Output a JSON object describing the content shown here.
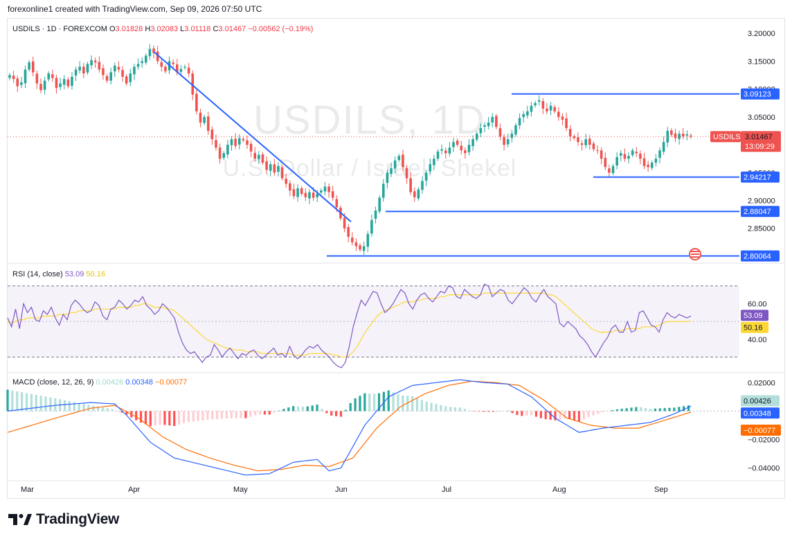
{
  "header": {
    "caption": "forexonline1 created with TradingView.com, Sep 09, 2026 07:50 UTC"
  },
  "brand": {
    "name": "TradingView"
  },
  "watermark": {
    "symbol": "USDILS, 1D",
    "description": "U.S. Dollar / Israeli Shekel"
  },
  "colors": {
    "up": "#26a69a",
    "down": "#ef5350",
    "line": "#2962ff",
    "rsi": "#7e57c2",
    "rsi_ma": "#fdd835",
    "macd": "#2962ff",
    "signal": "#ff6d00"
  },
  "chart_data": [
    {
      "type": "candlestick",
      "legend": {
        "symbol": "USDILS · 1D · FOREXCOM",
        "o_label": "O",
        "o": "3.01828",
        "h_label": "H",
        "h": "3.02083",
        "l_label": "L",
        "l": "3.01118",
        "c_label": "C",
        "c": "3.01467",
        "chg": "−0.00562 (−0.19%)"
      },
      "price_axis": {
        "ticks": [
          "3.20000",
          "3.15000",
          "3.10000",
          "3.05000",
          "3.00000",
          "2.95000",
          "2.90000",
          "2.85000"
        ],
        "range": [
          2.79,
          3.225
        ]
      },
      "time_axis": {
        "labels": [
          "Mar",
          "Apr",
          "May",
          "Jun",
          "Jul",
          "Aug",
          "Sep"
        ]
      },
      "last_price": {
        "symbol_tag": "USDILS",
        "value": "3.01467",
        "countdown": "13:09:29"
      },
      "levels": [
        {
          "value": 3.09123,
          "label": "3.09123"
        },
        {
          "value": 2.94217,
          "label": "2.94217"
        },
        {
          "value": 2.88047,
          "label": "2.88047"
        },
        {
          "value": 2.80064,
          "label": "2.80064"
        }
      ],
      "trendline": {
        "from": [
          3.167,
          "Apr"
        ],
        "to": [
          2.862,
          "Jun"
        ]
      },
      "closes": [
        3.125,
        3.118,
        3.105,
        3.112,
        3.135,
        3.148,
        3.13,
        3.11,
        3.098,
        3.115,
        3.128,
        3.12,
        3.102,
        3.11,
        3.118,
        3.105,
        3.122,
        3.135,
        3.14,
        3.128,
        3.145,
        3.152,
        3.148,
        3.135,
        3.125,
        3.115,
        3.13,
        3.142,
        3.135,
        3.122,
        3.11,
        3.128,
        3.14,
        3.145,
        3.15,
        3.16,
        3.172,
        3.165,
        3.15,
        3.14,
        3.132,
        3.15,
        3.145,
        3.13,
        3.136,
        3.14,
        3.128,
        3.09,
        3.06,
        3.04,
        3.05,
        3.025,
        3.01,
        2.995,
        2.975,
        2.985,
        3.0,
        3.01,
        2.998,
        3.012,
        3.008,
        3.0,
        2.988,
        2.975,
        2.982,
        2.968,
        2.955,
        2.965,
        2.95,
        2.962,
        2.94,
        2.93,
        2.918,
        2.908,
        2.922,
        2.912,
        2.906,
        2.915,
        2.905,
        2.912,
        2.918,
        2.925,
        2.915,
        2.905,
        2.888,
        2.868,
        2.85,
        2.835,
        2.825,
        2.818,
        2.812,
        2.818,
        2.84,
        2.865,
        2.882,
        2.905,
        2.93,
        2.95,
        2.958,
        2.972,
        2.98,
        2.96,
        2.94,
        2.915,
        2.906,
        2.92,
        2.935,
        2.95,
        2.965,
        2.975,
        2.988,
        2.992,
        2.985,
        2.995,
        3.005,
        3.0,
        2.99,
        2.985,
        3.0,
        3.01,
        3.02,
        3.03,
        3.035,
        3.04,
        3.05,
        3.032,
        3.015,
        3.0,
        3.01,
        3.02,
        3.035,
        3.048,
        3.055,
        3.06,
        3.07,
        3.075,
        3.08,
        3.065,
        3.06,
        3.07,
        3.06,
        3.05,
        3.045,
        3.03,
        3.015,
        3.012,
        3.005,
        3.0,
        3.01,
        3.0,
        2.992,
        2.99,
        2.975,
        2.96,
        2.95,
        2.962,
        2.978,
        2.985,
        2.975,
        2.98,
        2.99,
        2.985,
        2.975,
        2.962,
        2.96,
        2.968,
        2.975,
        2.99,
        3.005,
        3.025,
        3.018,
        3.012,
        3.02,
        3.015,
        3.019,
        3.01467
      ]
    },
    {
      "type": "line",
      "name": "RSI",
      "legend": {
        "label": "RSI (14, close)",
        "rsi": "53.09",
        "ma": "50.16"
      },
      "axis": {
        "ticks": [
          "60.00",
          "40.00"
        ],
        "range": [
          22,
          82
        ],
        "band": [
          30,
          70
        ]
      },
      "last": {
        "rsi": "53.09",
        "ma": "50.16"
      },
      "values": [
        52,
        47,
        57,
        46,
        60,
        55,
        58,
        51,
        50,
        56,
        54,
        58,
        52,
        48,
        54,
        51,
        59,
        62,
        60,
        57,
        55,
        56,
        61,
        59,
        53,
        51,
        57,
        58,
        62,
        60,
        57,
        59,
        62,
        61,
        64,
        59,
        57,
        54,
        56,
        60,
        58,
        55,
        52,
        44,
        38,
        34,
        32,
        33,
        30,
        27,
        30,
        31,
        37,
        34,
        30,
        33,
        35,
        32,
        29,
        32,
        31,
        33,
        34,
        31,
        29,
        31,
        33,
        35,
        31,
        32,
        30,
        36,
        31,
        29,
        31,
        34,
        36,
        35,
        37,
        34,
        32,
        30,
        27,
        25,
        24,
        27,
        36,
        47,
        55,
        62,
        59,
        63,
        67,
        66,
        60,
        55,
        57,
        60,
        64,
        68,
        66,
        60,
        57,
        62,
        65,
        66,
        63,
        61,
        64,
        67,
        66,
        70,
        69,
        64,
        63,
        68,
        66,
        64,
        63,
        65,
        71,
        70,
        64,
        66,
        68,
        67,
        62,
        60,
        63,
        66,
        69,
        67,
        63,
        61,
        65,
        68,
        64,
        62,
        60,
        49,
        47,
        50,
        48,
        46,
        42,
        40,
        37,
        33,
        30,
        34,
        38,
        41,
        46,
        48,
        44,
        44,
        50,
        44,
        45,
        55,
        56,
        52,
        48,
        47,
        44,
        51,
        55,
        53,
        52,
        54,
        53,
        52,
        53.09
      ],
      "ma_values": [
        50,
        49,
        50,
        51,
        51,
        52,
        52,
        52,
        52,
        53,
        53,
        53,
        53,
        54,
        54,
        54,
        55,
        55,
        56,
        56,
        56,
        56,
        57,
        57,
        57,
        57,
        57,
        57,
        58,
        58,
        58,
        58,
        59,
        59,
        60,
        60,
        59,
        58,
        58,
        58,
        57,
        57,
        56,
        54,
        52,
        50,
        48,
        46,
        44,
        42,
        40,
        39,
        38,
        37,
        36,
        35,
        35,
        34,
        34,
        34,
        33,
        33,
        33,
        33,
        32,
        32,
        32,
        32,
        32,
        32,
        32,
        32,
        31,
        31,
        31,
        31,
        32,
        32,
        32,
        32,
        32,
        32,
        31,
        31,
        30,
        30,
        31,
        33,
        36,
        40,
        44,
        47,
        50,
        53,
        55,
        56,
        57,
        58,
        59,
        60,
        61,
        61,
        61,
        62,
        62,
        63,
        63,
        63,
        63,
        64,
        64,
        65,
        65,
        65,
        65,
        65,
        65,
        65,
        65,
        65,
        66,
        66,
        66,
        66,
        66,
        66,
        66,
        66,
        66,
        66,
        66,
        66,
        66,
        66,
        66,
        66,
        65,
        65,
        64,
        62,
        60,
        58,
        56,
        54,
        52,
        50,
        48,
        46,
        45,
        44,
        44,
        44,
        44,
        45,
        45,
        45,
        46,
        46,
        46,
        46,
        47,
        47,
        47,
        47,
        48,
        49,
        50,
        50,
        50,
        50,
        50,
        50,
        50.16
      ]
    },
    {
      "type": "line",
      "name": "MACD",
      "legend": {
        "label": "MACD (close, 12, 26, 9)",
        "hist": "0.00426",
        "macd": "0.00348",
        "signal": "−0.00077"
      },
      "axis": {
        "ticks": [
          "0.02000",
          "−0.02000",
          "−0.04000"
        ],
        "range": [
          -0.048,
          0.026
        ]
      },
      "last": {
        "hist": "0.00426",
        "macd": "0.00348",
        "signal": "−0.00077"
      },
      "macd_anchors": [
        [
          0,
          0.0
        ],
        [
          20,
          0.004
        ],
        [
          35,
          0.006
        ],
        [
          45,
          0.005
        ],
        [
          50,
          -0.003
        ],
        [
          60,
          -0.022
        ],
        [
          70,
          -0.033
        ],
        [
          80,
          -0.037
        ],
        [
          90,
          -0.041
        ],
        [
          100,
          -0.045
        ],
        [
          110,
          -0.044
        ],
        [
          120,
          -0.036
        ],
        [
          130,
          -0.034
        ],
        [
          135,
          -0.042
        ],
        [
          140,
          -0.04
        ],
        [
          150,
          -0.01
        ],
        [
          160,
          0.01
        ],
        [
          170,
          0.018
        ],
        [
          180,
          0.02
        ],
        [
          190,
          0.022
        ],
        [
          200,
          0.02
        ],
        [
          210,
          0.019
        ],
        [
          220,
          0.01
        ],
        [
          230,
          -0.005
        ],
        [
          240,
          -0.015
        ],
        [
          250,
          -0.012
        ],
        [
          260,
          -0.01
        ],
        [
          270,
          -0.008
        ],
        [
          280,
          -0.002
        ],
        [
          287,
          0.00348
        ]
      ],
      "signal_anchors": [
        [
          0,
          -0.015
        ],
        [
          20,
          -0.005
        ],
        [
          35,
          0.002
        ],
        [
          45,
          0.004
        ],
        [
          55,
          -0.005
        ],
        [
          65,
          -0.018
        ],
        [
          75,
          -0.027
        ],
        [
          85,
          -0.033
        ],
        [
          95,
          -0.038
        ],
        [
          105,
          -0.042
        ],
        [
          115,
          -0.041
        ],
        [
          125,
          -0.038
        ],
        [
          135,
          -0.039
        ],
        [
          145,
          -0.033
        ],
        [
          155,
          -0.012
        ],
        [
          165,
          0.003
        ],
        [
          175,
          0.012
        ],
        [
          185,
          0.018
        ],
        [
          195,
          0.021
        ],
        [
          205,
          0.02
        ],
        [
          215,
          0.018
        ],
        [
          225,
          0.008
        ],
        [
          235,
          -0.005
        ],
        [
          245,
          -0.01
        ],
        [
          255,
          -0.012
        ],
        [
          265,
          -0.012
        ],
        [
          275,
          -0.007
        ],
        [
          287,
          -0.00077
        ]
      ]
    }
  ]
}
